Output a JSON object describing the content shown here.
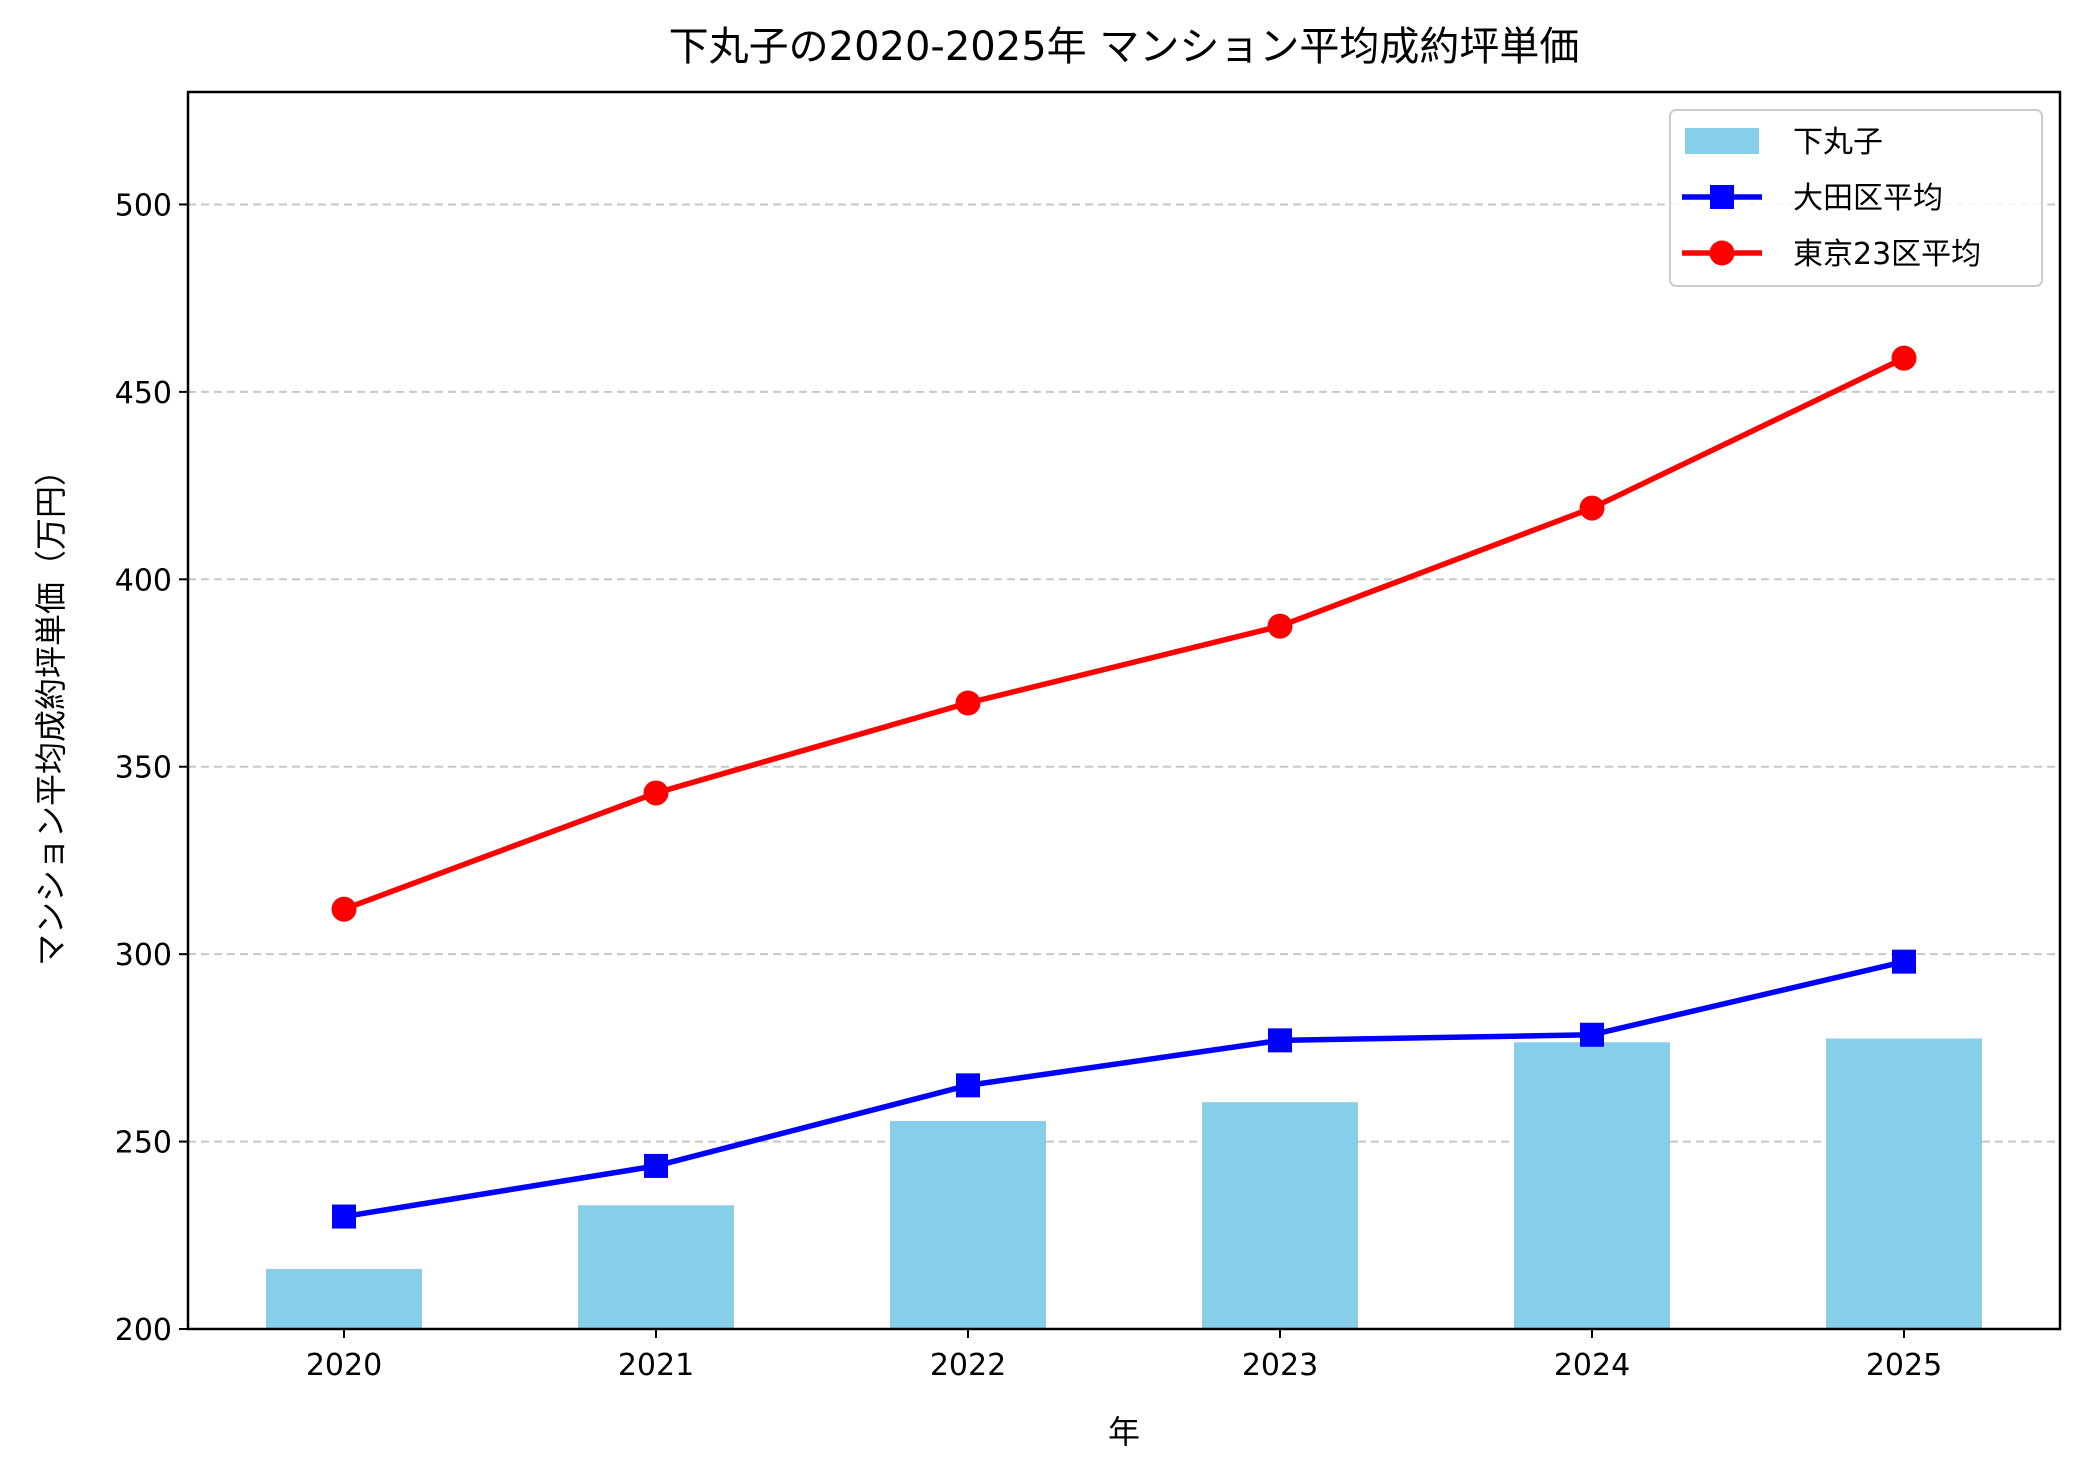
{
  "chart_data": {
    "type": "bar+line",
    "title": "下丸子の2020-2025年 マンション平均成約坪単価",
    "xlabel": "年",
    "ylabel": "マンション平均成約坪単価（万円）",
    "categories": [
      "2020",
      "2021",
      "2022",
      "2023",
      "2024",
      "2025"
    ],
    "ylim": [
      200,
      530
    ],
    "yticks": [
      200,
      250,
      300,
      350,
      400,
      450,
      500
    ],
    "grid": "y, dashed",
    "legend_position": "top-right",
    "series": [
      {
        "name": "下丸子",
        "kind": "bar",
        "color": "#87CEEB",
        "values": [
          216,
          233,
          255.5,
          260.5,
          276.5,
          277.5
        ]
      },
      {
        "name": "大田区平均",
        "kind": "line",
        "marker": "square",
        "color": "#0000FF",
        "values": [
          230,
          243.5,
          265,
          277,
          278.5,
          298
        ]
      },
      {
        "name": "東京23区平均",
        "kind": "line",
        "marker": "circle",
        "color": "#FF0000",
        "values": [
          312,
          343,
          367,
          387.5,
          419,
          459
        ]
      }
    ]
  }
}
